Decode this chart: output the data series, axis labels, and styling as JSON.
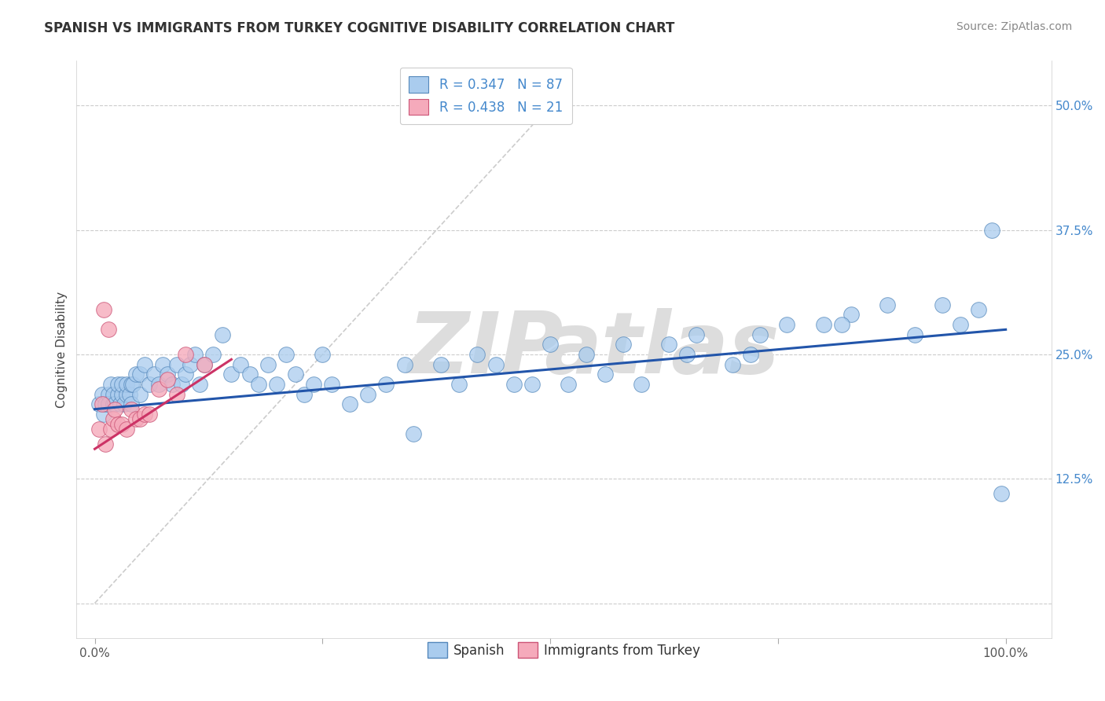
{
  "title": "SPANISH VS IMMIGRANTS FROM TURKEY COGNITIVE DISABILITY CORRELATION CHART",
  "source": "Source: ZipAtlas.com",
  "ylabel": "Cognitive Disability",
  "ytick_positions": [
    0.0,
    0.125,
    0.25,
    0.375,
    0.5
  ],
  "ytick_labels": [
    "",
    "12.5%",
    "25.0%",
    "37.5%",
    "50.0%"
  ],
  "xtick_positions": [
    0.0,
    0.25,
    0.5,
    0.75,
    1.0
  ],
  "xtick_labels": [
    "0.0%",
    "",
    "",
    "",
    "100.0%"
  ],
  "xlim": [
    -0.02,
    1.05
  ],
  "ylim": [
    -0.035,
    0.545
  ],
  "legend_label_spanish": "Spanish",
  "legend_label_turkey": "Immigrants from Turkey",
  "background_color": "#ffffff",
  "grid_color": "#cccccc",
  "spanish_color": "#aaccee",
  "turkish_color": "#f5aabb",
  "spanish_edge_color": "#5588bb",
  "turkish_edge_color": "#cc5577",
  "spanish_line_color": "#2255aa",
  "turkish_line_color": "#cc3366",
  "ref_line_color": "#cccccc",
  "R_spanish": 0.347,
  "N_spanish": 87,
  "R_turkey": 0.438,
  "N_turkey": 21,
  "title_fontsize": 12,
  "axis_label_fontsize": 11,
  "tick_fontsize": 11,
  "legend_fontsize": 12,
  "source_fontsize": 10,
  "spanish_x": [
    0.005,
    0.008,
    0.01,
    0.012,
    0.015,
    0.015,
    0.018,
    0.02,
    0.02,
    0.022,
    0.025,
    0.025,
    0.028,
    0.03,
    0.03,
    0.032,
    0.035,
    0.035,
    0.038,
    0.04,
    0.04,
    0.042,
    0.045,
    0.05,
    0.05,
    0.055,
    0.06,
    0.065,
    0.07,
    0.075,
    0.08,
    0.085,
    0.09,
    0.095,
    0.1,
    0.105,
    0.11,
    0.115,
    0.12,
    0.13,
    0.14,
    0.15,
    0.16,
    0.17,
    0.18,
    0.19,
    0.2,
    0.21,
    0.22,
    0.23,
    0.24,
    0.25,
    0.26,
    0.28,
    0.3,
    0.32,
    0.34,
    0.35,
    0.38,
    0.4,
    0.42,
    0.44,
    0.46,
    0.48,
    0.5,
    0.52,
    0.54,
    0.56,
    0.58,
    0.6,
    0.63,
    0.66,
    0.7,
    0.73,
    0.76,
    0.8,
    0.83,
    0.87,
    0.9,
    0.93,
    0.95,
    0.97,
    0.985,
    0.995,
    0.65,
    0.72,
    0.82
  ],
  "spanish_y": [
    0.2,
    0.21,
    0.19,
    0.2,
    0.21,
    0.2,
    0.22,
    0.2,
    0.21,
    0.2,
    0.21,
    0.22,
    0.2,
    0.21,
    0.22,
    0.2,
    0.21,
    0.22,
    0.21,
    0.22,
    0.2,
    0.22,
    0.23,
    0.21,
    0.23,
    0.24,
    0.22,
    0.23,
    0.22,
    0.24,
    0.23,
    0.22,
    0.24,
    0.22,
    0.23,
    0.24,
    0.25,
    0.22,
    0.24,
    0.25,
    0.27,
    0.23,
    0.24,
    0.23,
    0.22,
    0.24,
    0.22,
    0.25,
    0.23,
    0.21,
    0.22,
    0.25,
    0.22,
    0.2,
    0.21,
    0.22,
    0.24,
    0.17,
    0.24,
    0.22,
    0.25,
    0.24,
    0.22,
    0.22,
    0.26,
    0.22,
    0.25,
    0.23,
    0.26,
    0.22,
    0.26,
    0.27,
    0.24,
    0.27,
    0.28,
    0.28,
    0.29,
    0.3,
    0.27,
    0.3,
    0.28,
    0.295,
    0.375,
    0.11,
    0.25,
    0.25,
    0.28
  ],
  "turkish_x": [
    0.005,
    0.008,
    0.01,
    0.012,
    0.015,
    0.018,
    0.02,
    0.022,
    0.025,
    0.03,
    0.035,
    0.04,
    0.045,
    0.05,
    0.055,
    0.06,
    0.07,
    0.08,
    0.09,
    0.1,
    0.12
  ],
  "turkish_y": [
    0.175,
    0.2,
    0.295,
    0.16,
    0.275,
    0.175,
    0.185,
    0.195,
    0.18,
    0.18,
    0.175,
    0.195,
    0.185,
    0.185,
    0.19,
    0.19,
    0.215,
    0.225,
    0.21,
    0.25,
    0.24
  ],
  "ref_line_x": [
    0.0,
    0.5
  ],
  "ref_line_y": [
    0.0,
    0.5
  ],
  "blue_line_x0": 0.0,
  "blue_line_y0": 0.195,
  "blue_line_x1": 1.0,
  "blue_line_y1": 0.275,
  "red_line_x0": 0.0,
  "red_line_y0": 0.155,
  "red_line_x1": 0.15,
  "red_line_y1": 0.245
}
